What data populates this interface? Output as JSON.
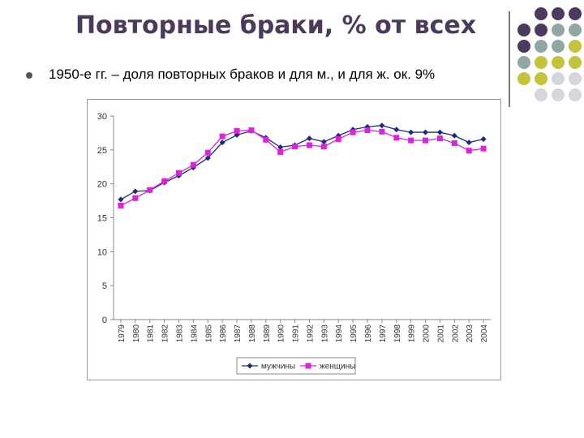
{
  "slide": {
    "title": "Повторные браки, % от всех",
    "bullet": "1950-е гг. – доля повторных браков и для м., и для ж. ок. 9%"
  },
  "decor": {
    "dot_colors": [
      "#4b3a5e",
      "#8fa8a6",
      "#c4c43c",
      "#d6d6de"
    ]
  },
  "chart_data": {
    "type": "line",
    "categories": [
      "1979",
      "1980",
      "1981",
      "1982",
      "1983",
      "1984",
      "1985",
      "1986",
      "1987",
      "1988",
      "1989",
      "1990",
      "1991",
      "1992",
      "1993",
      "1994",
      "1995",
      "1996",
      "1997",
      "1998",
      "1999",
      "2000",
      "2001",
      "2002",
      "2003",
      "2004"
    ],
    "series": [
      {
        "name": "мужчины",
        "color": "#1f2a80",
        "marker": "diamond",
        "values": [
          17.7,
          18.9,
          19.0,
          20.2,
          21.2,
          22.4,
          23.8,
          26.1,
          27.2,
          27.8,
          26.8,
          25.4,
          25.7,
          26.7,
          26.2,
          27.1,
          28.0,
          28.4,
          28.6,
          28.0,
          27.6,
          27.6,
          27.6,
          27.1,
          26.1,
          26.6
        ]
      },
      {
        "name": "женщины",
        "color": "#e020e0",
        "marker": "square",
        "values": [
          16.8,
          17.9,
          19.1,
          20.4,
          21.6,
          22.8,
          24.6,
          27.0,
          27.8,
          27.9,
          26.5,
          24.7,
          25.5,
          25.7,
          25.5,
          26.6,
          27.6,
          27.9,
          27.7,
          26.8,
          26.4,
          26.4,
          26.7,
          26.0,
          24.9,
          25.2
        ]
      }
    ],
    "ylim": [
      0,
      30
    ],
    "yticks": [
      "0",
      "5",
      "10",
      "15",
      "20",
      "25",
      "30"
    ],
    "legend_position": "bottom",
    "grid": false
  }
}
